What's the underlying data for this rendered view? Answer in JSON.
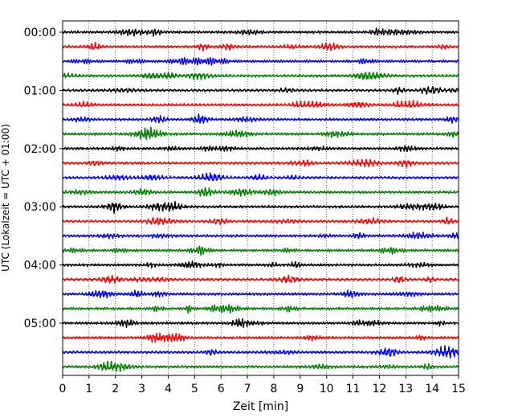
{
  "chart_data": {
    "type": "line",
    "title": "",
    "xlabel": "Zeit  [min]",
    "ylabel": "UTC (Lokalzeit = UTC + 01:00)",
    "xlim": [
      0,
      15
    ],
    "x_ticks": [
      "0",
      "1",
      "2",
      "3",
      "4",
      "5",
      "6",
      "7",
      "8",
      "9",
      "10",
      "11",
      "12",
      "13",
      "14",
      "15"
    ],
    "y_tick_labels": [
      "00:00",
      "01:00",
      "02:00",
      "03:00",
      "04:00",
      "05:00"
    ],
    "trace_count": 24,
    "minutes_per_trace": 15,
    "grid": "vertical dotted at each minute",
    "series_colors": [
      "#000000",
      "#ff0000",
      "#0000ff",
      "#008000"
    ]
  }
}
